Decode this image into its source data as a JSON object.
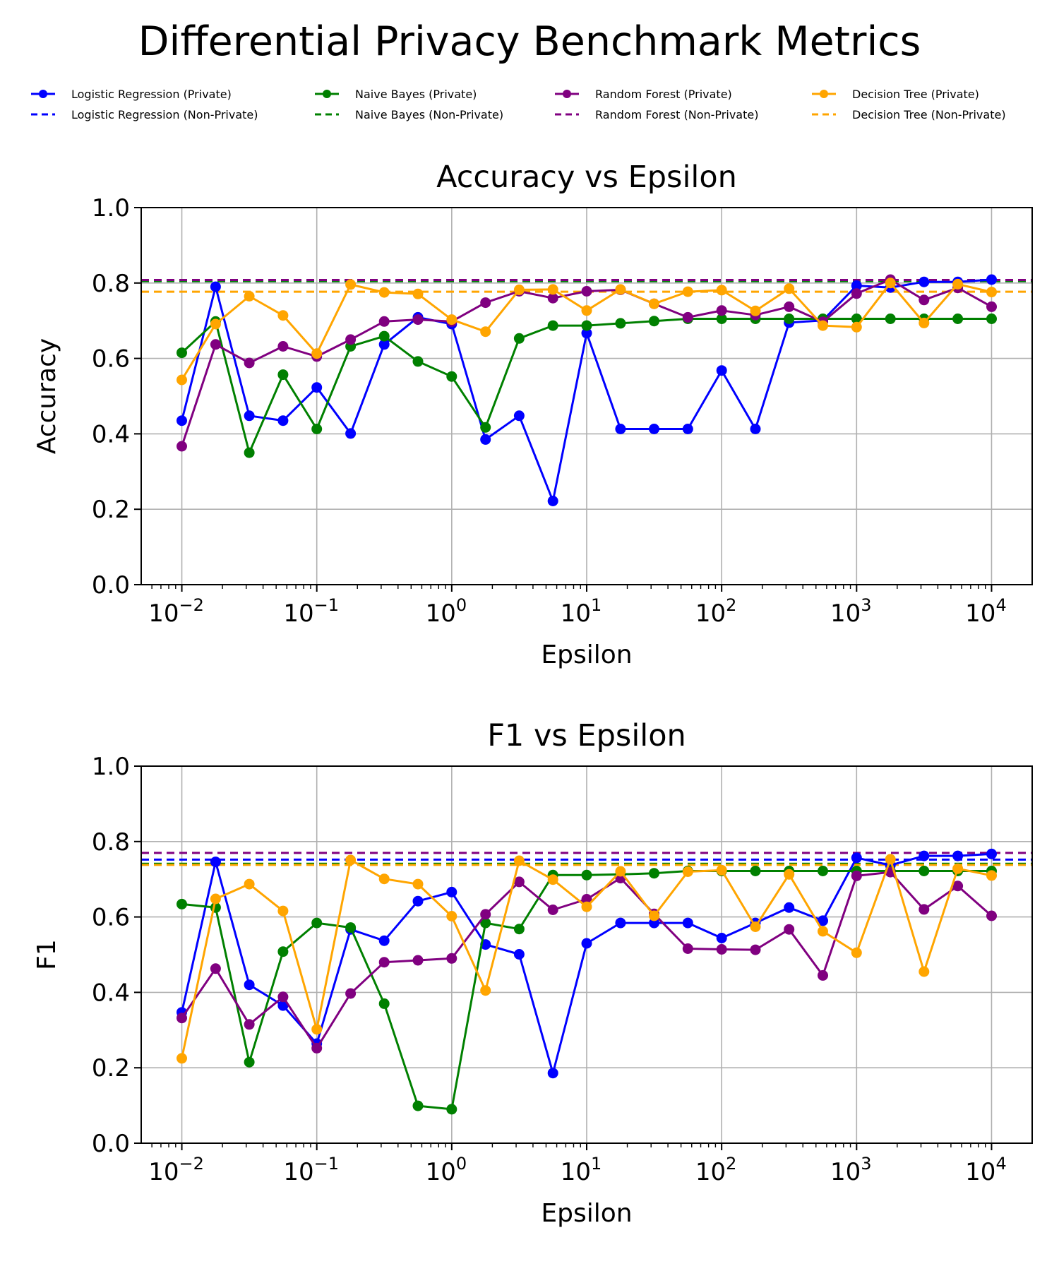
{
  "figure": {
    "suptitle": "Differential Privacy Benchmark Metrics"
  },
  "colors": {
    "grid": "#b0b0b0",
    "axes": "#000000"
  },
  "legend": {
    "placement": "top, 4 columns",
    "entries": [
      {
        "label": "Logistic Regression (Private)",
        "color": "#0000ff",
        "style": "solid-marker"
      },
      {
        "label": "Logistic Regression (Non-Private)",
        "color": "#0000ff",
        "style": "dashed"
      },
      {
        "label": "Naive Bayes (Private)",
        "color": "#008000",
        "style": "solid-marker"
      },
      {
        "label": "Naive Bayes (Non-Private)",
        "color": "#008000",
        "style": "dashed"
      },
      {
        "label": "Random Forest (Private)",
        "color": "#800080",
        "style": "solid-marker"
      },
      {
        "label": "Random Forest (Non-Private)",
        "color": "#800080",
        "style": "dashed"
      },
      {
        "label": "Decision Tree (Private)",
        "color": "#ffa500",
        "style": "solid-marker"
      },
      {
        "label": "Decision Tree (Non-Private)",
        "color": "#ffa500",
        "style": "dashed"
      }
    ]
  },
  "chart_data": [
    {
      "type": "line",
      "title": "Accuracy vs Epsilon",
      "xlabel": "Epsilon",
      "ylabel": "Accuracy",
      "xscale": "log",
      "xlim": [
        0.005,
        20000
      ],
      "ylim": [
        0.0,
        1.0
      ],
      "grid": true,
      "x_ticks": [
        {
          "value": 0.01,
          "base": "10",
          "exp": "−2"
        },
        {
          "value": 0.1,
          "base": "10",
          "exp": "−1"
        },
        {
          "value": 1,
          "base": "10",
          "exp": "0"
        },
        {
          "value": 10,
          "base": "10",
          "exp": "1"
        },
        {
          "value": 100,
          "base": "10",
          "exp": "2"
        },
        {
          "value": 1000,
          "base": "10",
          "exp": "3"
        },
        {
          "value": 10000,
          "base": "10",
          "exp": "4"
        }
      ],
      "y_ticks": [
        "0.0",
        "0.2",
        "0.4",
        "0.6",
        "0.8",
        "1.0"
      ],
      "x": [
        0.01,
        0.0178,
        0.0316,
        0.0562,
        0.1,
        0.178,
        0.316,
        0.562,
        1,
        1.78,
        3.16,
        5.62,
        10,
        17.8,
        31.6,
        56.2,
        100,
        178,
        316,
        562,
        1000,
        1780,
        3160,
        5620,
        10000
      ],
      "series": [
        {
          "name": "Logistic Regression (Private)",
          "color": "#0000ff",
          "values": [
            0.435,
            0.79,
            0.448,
            0.435,
            0.523,
            0.401,
            0.637,
            0.709,
            0.691,
            0.385,
            0.448,
            0.222,
            0.667,
            0.413,
            0.413,
            0.413,
            0.568,
            0.413,
            0.695,
            0.701,
            0.793,
            0.788,
            0.803,
            0.803,
            0.809
          ]
        },
        {
          "name": "Naive Bayes (Private)",
          "color": "#008000",
          "values": [
            0.615,
            0.698,
            0.35,
            0.557,
            0.413,
            0.632,
            0.659,
            0.592,
            0.552,
            0.417,
            0.653,
            0.687,
            0.687,
            0.693,
            0.699,
            0.705,
            0.705,
            0.705,
            0.705,
            0.705,
            0.705,
            0.705,
            0.705,
            0.705,
            0.705
          ]
        },
        {
          "name": "Random Forest (Private)",
          "color": "#800080",
          "values": [
            0.367,
            0.637,
            0.588,
            0.632,
            0.605,
            0.65,
            0.698,
            0.703,
            0.698,
            0.748,
            0.778,
            0.76,
            0.778,
            0.782,
            0.745,
            0.709,
            0.727,
            0.715,
            0.737,
            0.697,
            0.772,
            0.809,
            0.755,
            0.787,
            0.737
          ]
        },
        {
          "name": "Decision Tree (Private)",
          "color": "#ffa500",
          "values": [
            0.543,
            0.691,
            0.765,
            0.714,
            0.613,
            0.796,
            0.775,
            0.771,
            0.703,
            0.671,
            0.782,
            0.783,
            0.727,
            0.783,
            0.745,
            0.777,
            0.781,
            0.726,
            0.785,
            0.687,
            0.683,
            0.8,
            0.694,
            0.797,
            0.776
          ]
        }
      ],
      "baselines": [
        {
          "name": "Logistic Regression (Non-Private)",
          "color": "#0000ff",
          "value": 0.805
        },
        {
          "name": "Naive Bayes (Non-Private)",
          "color": "#008000",
          "value": 0.805
        },
        {
          "name": "Random Forest (Non-Private)",
          "color": "#800080",
          "value": 0.808
        },
        {
          "name": "Decision Tree (Non-Private)",
          "color": "#ffa500",
          "value": 0.777
        }
      ]
    },
    {
      "type": "line",
      "title": "F1 vs Epsilon",
      "xlabel": "Epsilon",
      "ylabel": "F1",
      "xscale": "log",
      "xlim": [
        0.005,
        20000
      ],
      "ylim": [
        0.0,
        1.0
      ],
      "grid": true,
      "x_ticks": [
        {
          "value": 0.01,
          "base": "10",
          "exp": "−2"
        },
        {
          "value": 0.1,
          "base": "10",
          "exp": "−1"
        },
        {
          "value": 1,
          "base": "10",
          "exp": "0"
        },
        {
          "value": 10,
          "base": "10",
          "exp": "1"
        },
        {
          "value": 100,
          "base": "10",
          "exp": "2"
        },
        {
          "value": 1000,
          "base": "10",
          "exp": "3"
        },
        {
          "value": 10000,
          "base": "10",
          "exp": "4"
        }
      ],
      "y_ticks": [
        "0.0",
        "0.2",
        "0.4",
        "0.6",
        "0.8",
        "1.0"
      ],
      "x": [
        0.01,
        0.0178,
        0.0316,
        0.0562,
        0.1,
        0.178,
        0.316,
        0.562,
        1,
        1.78,
        3.16,
        5.62,
        10,
        17.8,
        31.6,
        56.2,
        100,
        178,
        316,
        562,
        1000,
        1780,
        3160,
        5620,
        10000
      ],
      "series": [
        {
          "name": "Logistic Regression (Private)",
          "color": "#0000ff",
          "values": [
            0.347,
            0.746,
            0.42,
            0.365,
            0.264,
            0.567,
            0.537,
            0.642,
            0.666,
            0.527,
            0.501,
            0.186,
            0.53,
            0.584,
            0.584,
            0.584,
            0.544,
            0.584,
            0.625,
            0.59,
            0.757,
            0.737,
            0.762,
            0.762,
            0.767
          ]
        },
        {
          "name": "Naive Bayes (Private)",
          "color": "#008000",
          "values": [
            0.634,
            0.625,
            0.215,
            0.508,
            0.584,
            0.572,
            0.37,
            0.099,
            0.09,
            0.584,
            0.568,
            0.711,
            0.711,
            0.713,
            0.716,
            0.722,
            0.722,
            0.722,
            0.722,
            0.722,
            0.722,
            0.722,
            0.722,
            0.722,
            0.722
          ]
        },
        {
          "name": "Random Forest (Private)",
          "color": "#800080",
          "values": [
            0.332,
            0.463,
            0.315,
            0.388,
            0.252,
            0.397,
            0.48,
            0.485,
            0.49,
            0.607,
            0.693,
            0.619,
            0.647,
            0.703,
            0.608,
            0.516,
            0.514,
            0.513,
            0.567,
            0.445,
            0.709,
            0.719,
            0.62,
            0.682,
            0.603
          ]
        },
        {
          "name": "Decision Tree (Private)",
          "color": "#ffa500",
          "values": [
            0.225,
            0.648,
            0.687,
            0.616,
            0.302,
            0.751,
            0.701,
            0.687,
            0.602,
            0.405,
            0.749,
            0.699,
            0.627,
            0.721,
            0.603,
            0.72,
            0.724,
            0.574,
            0.713,
            0.562,
            0.505,
            0.753,
            0.455,
            0.728,
            0.71
          ]
        }
      ],
      "baselines": [
        {
          "name": "Logistic Regression (Non-Private)",
          "color": "#0000ff",
          "value": 0.752
        },
        {
          "name": "Naive Bayes (Non-Private)",
          "color": "#008000",
          "value": 0.741
        },
        {
          "name": "Random Forest (Non-Private)",
          "color": "#800080",
          "value": 0.77
        },
        {
          "name": "Decision Tree (Non-Private)",
          "color": "#ffa500",
          "value": 0.738
        }
      ]
    }
  ]
}
